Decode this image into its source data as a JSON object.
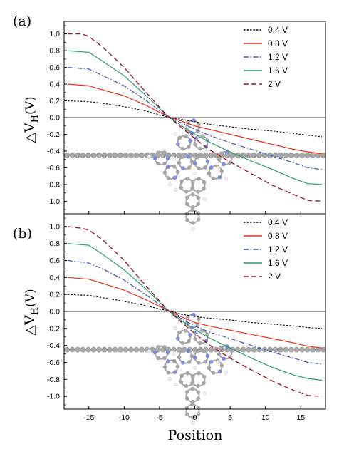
{
  "xlabel": "Position",
  "ylabel": {
    "delta": "△V",
    "sub": "H",
    "unit": "(V)"
  },
  "chart_data": [
    {
      "type": "line",
      "panel": "(a)",
      "xlim": [
        -18.5,
        18.5
      ],
      "ylim": [
        -1.15,
        1.15
      ],
      "xticks": [
        -15,
        -10,
        -5,
        0,
        5,
        10,
        15
      ],
      "yticks": [
        1.0,
        0.8,
        0.6,
        0.4,
        0.2,
        0.0,
        -0.2,
        -0.4,
        -0.6,
        -0.8,
        -1.0
      ],
      "ytick_labels": [
        "1.0",
        "0.8",
        "0.6",
        "0.4",
        "0.2",
        "0.0",
        "-0.2",
        "-0.4",
        "-0.6",
        "-0.8",
        "-1.0"
      ],
      "reference_line": 0,
      "legend_position": "top-right",
      "series": [
        {
          "name": "0.4 V",
          "color": "#111111",
          "style": "dotted",
          "x": [
            -18,
            -15,
            -13,
            -10,
            -7,
            -4,
            -2,
            0,
            2,
            5,
            8,
            11,
            14,
            16,
            18
          ],
          "y": [
            0.2,
            0.19,
            0.17,
            0.13,
            0.08,
            0.01,
            -0.02,
            -0.05,
            -0.08,
            -0.11,
            -0.14,
            -0.16,
            -0.19,
            -0.21,
            -0.23
          ]
        },
        {
          "name": "0.8 V",
          "color": "#e8301c",
          "style": "solid",
          "x": [
            -18,
            -15,
            -13,
            -10,
            -7,
            -4,
            -2,
            0,
            2,
            5,
            8,
            11,
            14,
            16,
            18
          ],
          "y": [
            0.4,
            0.38,
            0.33,
            0.26,
            0.15,
            0.02,
            -0.04,
            -0.1,
            -0.14,
            -0.2,
            -0.26,
            -0.32,
            -0.38,
            -0.41,
            -0.43
          ]
        },
        {
          "name": "1.2 V",
          "color": "#3f51c9",
          "style": "dashdot",
          "x": [
            -18,
            -15,
            -13,
            -10,
            -7,
            -4,
            -2,
            0,
            2,
            5,
            8,
            11,
            14,
            16,
            18
          ],
          "y": [
            0.6,
            0.58,
            0.5,
            0.38,
            0.21,
            0.02,
            -0.06,
            -0.14,
            -0.21,
            -0.3,
            -0.38,
            -0.46,
            -0.54,
            -0.6,
            -0.62
          ]
        },
        {
          "name": "1.6 V",
          "color": "#2a9a72",
          "style": "solid",
          "x": [
            -18,
            -15,
            -13,
            -10,
            -7,
            -4,
            -2,
            0,
            2,
            5,
            8,
            11,
            14,
            16,
            18
          ],
          "y": [
            0.8,
            0.78,
            0.67,
            0.5,
            0.27,
            0.03,
            -0.09,
            -0.2,
            -0.29,
            -0.41,
            -0.52,
            -0.62,
            -0.73,
            -0.79,
            -0.8
          ]
        },
        {
          "name": "2 V",
          "color": "#9c1c2e",
          "style": "dashed",
          "x": [
            -18,
            -16,
            -15,
            -13,
            -10,
            -7,
            -4,
            -2,
            0,
            2,
            5,
            8,
            11,
            14,
            16,
            18
          ],
          "y": [
            1.0,
            1.0,
            0.97,
            0.84,
            0.6,
            0.31,
            0.03,
            -0.11,
            -0.25,
            -0.38,
            -0.53,
            -0.67,
            -0.81,
            -0.92,
            -0.99,
            -1.0
          ]
        }
      ]
    },
    {
      "type": "line",
      "panel": "(b)",
      "xlim": [
        -18.5,
        18.5
      ],
      "ylim": [
        -1.15,
        1.15
      ],
      "xticks": [
        -15,
        -10,
        -5,
        0,
        5,
        10,
        15
      ],
      "yticks": [
        1.0,
        0.8,
        0.6,
        0.4,
        0.2,
        0.0,
        -0.2,
        -0.4,
        -0.6,
        -0.8,
        -1.0
      ],
      "ytick_labels": [
        "1.0",
        "0.8",
        "0.6",
        "0.4",
        "0.2",
        "0.0",
        "-0.2",
        "-0.4",
        "-0.6",
        "-0.8",
        "-1.0"
      ],
      "reference_line": 0,
      "legend_position": "top-right",
      "series": [
        {
          "name": "0.4 V",
          "color": "#111111",
          "style": "dotted",
          "x": [
            -18,
            -15,
            -13,
            -10,
            -7,
            -4,
            -2,
            0,
            2,
            5,
            8,
            11,
            14,
            16,
            18
          ],
          "y": [
            0.2,
            0.19,
            0.16,
            0.12,
            0.07,
            0.01,
            -0.03,
            -0.06,
            -0.08,
            -0.1,
            -0.13,
            -0.15,
            -0.17,
            -0.19,
            -0.2
          ]
        },
        {
          "name": "0.8 V",
          "color": "#e8301c",
          "style": "solid",
          "x": [
            -18,
            -15,
            -13,
            -10,
            -7,
            -4,
            -2,
            0,
            2,
            5,
            8,
            11,
            14,
            16,
            18
          ],
          "y": [
            0.4,
            0.38,
            0.33,
            0.25,
            0.14,
            0.02,
            -0.06,
            -0.13,
            -0.17,
            -0.22,
            -0.27,
            -0.32,
            -0.37,
            -0.41,
            -0.43
          ]
        },
        {
          "name": "1.2 V",
          "color": "#3f51c9",
          "style": "dashdot",
          "x": [
            -18,
            -15,
            -13,
            -10,
            -7,
            -4,
            -2,
            0,
            2,
            5,
            8,
            11,
            14,
            16,
            18
          ],
          "y": [
            0.6,
            0.57,
            0.5,
            0.37,
            0.2,
            0.02,
            -0.08,
            -0.17,
            -0.24,
            -0.32,
            -0.4,
            -0.48,
            -0.55,
            -0.6,
            -0.62
          ]
        },
        {
          "name": "1.6 V",
          "color": "#2a9a72",
          "style": "solid",
          "x": [
            -18,
            -15,
            -13,
            -10,
            -7,
            -4,
            -2,
            0,
            2,
            5,
            8,
            11,
            14,
            16,
            18
          ],
          "y": [
            0.8,
            0.78,
            0.67,
            0.49,
            0.27,
            0.03,
            -0.1,
            -0.21,
            -0.31,
            -0.43,
            -0.55,
            -0.66,
            -0.75,
            -0.79,
            -0.81
          ]
        },
        {
          "name": "2 V",
          "color": "#9c1c2e",
          "style": "dashed",
          "x": [
            -18,
            -16,
            -15,
            -13,
            -10,
            -7,
            -4,
            -2,
            0,
            2,
            5,
            8,
            11,
            14,
            16,
            18
          ],
          "y": [
            1.0,
            0.98,
            0.96,
            0.84,
            0.6,
            0.31,
            0.03,
            -0.12,
            -0.26,
            -0.39,
            -0.55,
            -0.69,
            -0.82,
            -0.93,
            -0.99,
            -1.0
          ]
        }
      ]
    }
  ]
}
